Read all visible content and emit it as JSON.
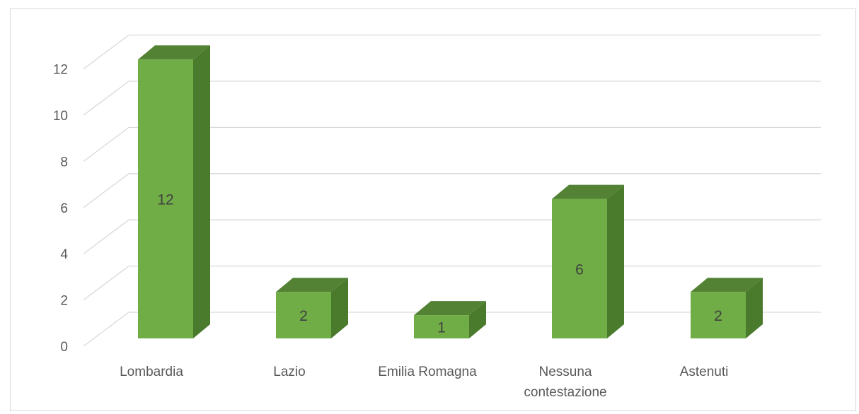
{
  "chart_data": {
    "type": "bar",
    "style": "3d-column",
    "categories": [
      "Lombardia",
      "Lazio",
      "Emilia Romagna",
      "Nessuna contestazione",
      "Astenuti"
    ],
    "category_lines": [
      [
        "Lombardia"
      ],
      [
        "Lazio"
      ],
      [
        "Emilia Romagna"
      ],
      [
        "Nessuna",
        "contestazione"
      ],
      [
        "Astenuti"
      ]
    ],
    "values": [
      12,
      2,
      1,
      6,
      2
    ],
    "data_labels": [
      "12",
      "2",
      "1",
      "6",
      "2"
    ],
    "title": "",
    "xlabel": "",
    "ylabel": "",
    "ylim": [
      0,
      12
    ],
    "yticks": [
      0,
      2,
      4,
      6,
      8,
      10,
      12
    ],
    "grid": true,
    "legend": "none",
    "colors": {
      "bar_front": "#70ad47",
      "bar_side": "#4a7a2c",
      "bar_top": "#548235",
      "gridline": "#d9d9d9",
      "tick_text": "#595959",
      "data_label_text": "#404040"
    }
  }
}
